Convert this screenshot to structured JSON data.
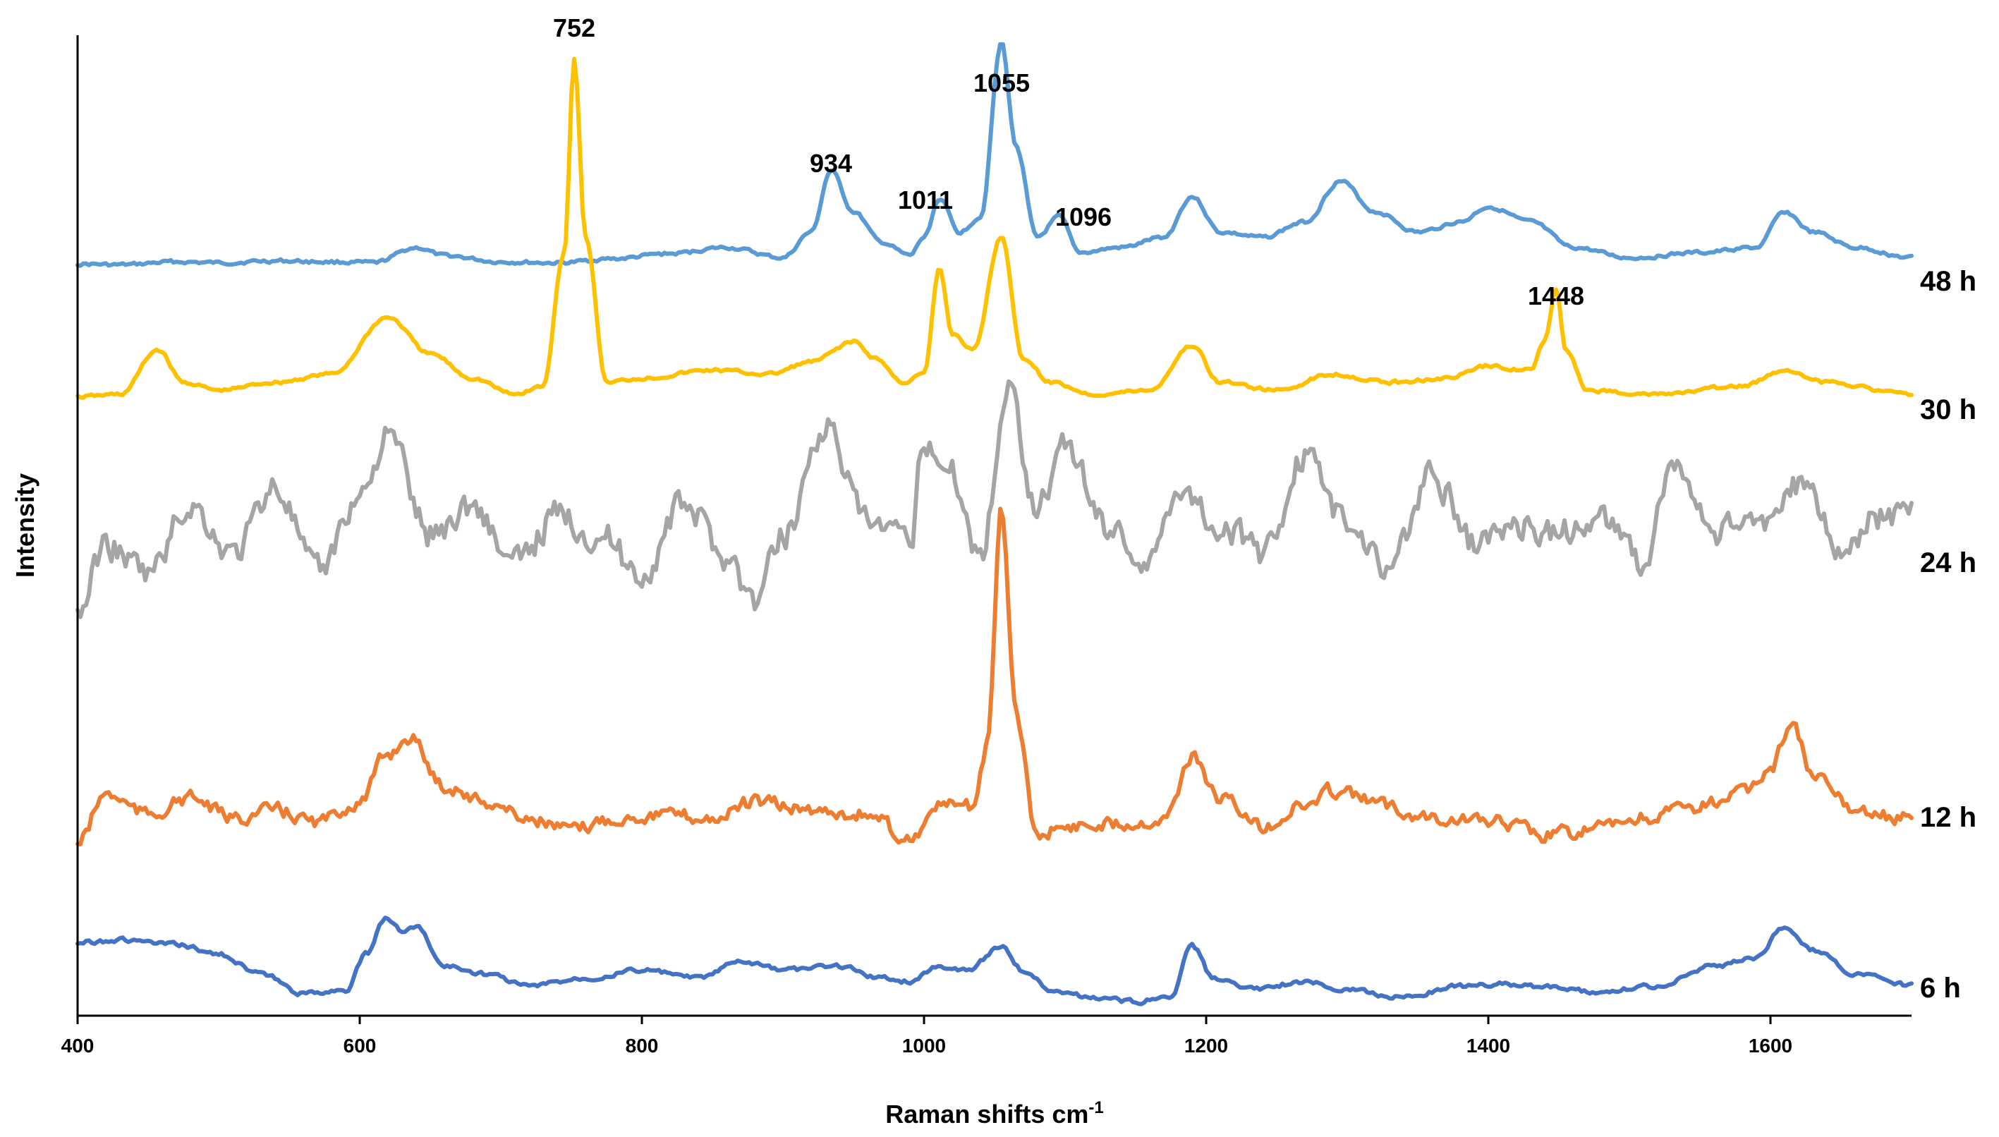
{
  "chart_data": {
    "type": "line",
    "title": "",
    "xlabel": "Raman shifts cm",
    "xlabel_superscript": "-1",
    "ylabel": "Intensity",
    "xlim": [
      400,
      1700
    ],
    "xticks": [
      400,
      600,
      800,
      1000,
      1200,
      1400,
      1600
    ],
    "xtick_labels": [
      "400",
      "600",
      "800",
      "1000",
      "1200",
      "1400",
      "1600"
    ],
    "grid": false,
    "legend": "none",
    "series": [
      {
        "name": "48 h",
        "color": "#5B9BD5",
        "points": [
          [
            400,
            0.04
          ],
          [
            430,
            0.03
          ],
          [
            470,
            0.06
          ],
          [
            500,
            0.05
          ],
          [
            540,
            0.07
          ],
          [
            580,
            0.06
          ],
          [
            610,
            0.05
          ],
          [
            640,
            0.2
          ],
          [
            660,
            0.12
          ],
          [
            700,
            0.06
          ],
          [
            740,
            0.05
          ],
          [
            780,
            0.09
          ],
          [
            820,
            0.14
          ],
          [
            860,
            0.2
          ],
          [
            900,
            0.1
          ],
          [
            920,
            0.35
          ],
          [
            934,
            0.95
          ],
          [
            950,
            0.55
          ],
          [
            970,
            0.25
          ],
          [
            990,
            0.12
          ],
          [
            1000,
            0.3
          ],
          [
            1011,
            0.68
          ],
          [
            1025,
            0.35
          ],
          [
            1040,
            0.5
          ],
          [
            1055,
            2.2
          ],
          [
            1065,
            1.2
          ],
          [
            1080,
            0.3
          ],
          [
            1096,
            0.5
          ],
          [
            1110,
            0.15
          ],
          [
            1140,
            0.2
          ],
          [
            1170,
            0.3
          ],
          [
            1190,
            0.7
          ],
          [
            1210,
            0.35
          ],
          [
            1240,
            0.3
          ],
          [
            1270,
            0.45
          ],
          [
            1295,
            0.85
          ],
          [
            1320,
            0.55
          ],
          [
            1350,
            0.35
          ],
          [
            1380,
            0.45
          ],
          [
            1400,
            0.6
          ],
          [
            1430,
            0.45
          ],
          [
            1460,
            0.2
          ],
          [
            1500,
            0.1
          ],
          [
            1550,
            0.15
          ],
          [
            1590,
            0.2
          ],
          [
            1610,
            0.55
          ],
          [
            1630,
            0.35
          ],
          [
            1660,
            0.2
          ],
          [
            1700,
            0.1
          ]
        ]
      },
      {
        "name": "30 h",
        "color": "#FFC000",
        "points": [
          [
            400,
            0.02
          ],
          [
            430,
            0.05
          ],
          [
            457,
            0.6
          ],
          [
            475,
            0.2
          ],
          [
            500,
            0.1
          ],
          [
            540,
            0.2
          ],
          [
            580,
            0.3
          ],
          [
            620,
            1.0
          ],
          [
            650,
            0.55
          ],
          [
            680,
            0.25
          ],
          [
            710,
            0.05
          ],
          [
            730,
            0.15
          ],
          [
            745,
            1.8
          ],
          [
            752,
            4.2
          ],
          [
            760,
            2.0
          ],
          [
            775,
            0.2
          ],
          [
            800,
            0.25
          ],
          [
            850,
            0.35
          ],
          [
            890,
            0.3
          ],
          [
            920,
            0.45
          ],
          [
            950,
            0.7
          ],
          [
            965,
            0.5
          ],
          [
            985,
            0.2
          ],
          [
            1000,
            0.3
          ],
          [
            1011,
            1.6
          ],
          [
            1020,
            0.8
          ],
          [
            1035,
            0.6
          ],
          [
            1055,
            2.0
          ],
          [
            1070,
            0.5
          ],
          [
            1090,
            0.2
          ],
          [
            1120,
            0.05
          ],
          [
            1160,
            0.1
          ],
          [
            1190,
            0.65
          ],
          [
            1210,
            0.2
          ],
          [
            1250,
            0.1
          ],
          [
            1290,
            0.3
          ],
          [
            1330,
            0.2
          ],
          [
            1370,
            0.25
          ],
          [
            1400,
            0.4
          ],
          [
            1430,
            0.35
          ],
          [
            1440,
            0.7
          ],
          [
            1448,
            1.35
          ],
          [
            1455,
            0.6
          ],
          [
            1470,
            0.1
          ],
          [
            1520,
            0.05
          ],
          [
            1580,
            0.15
          ],
          [
            1610,
            0.35
          ],
          [
            1640,
            0.2
          ],
          [
            1700,
            0.05
          ]
        ]
      },
      {
        "name": "24 h",
        "color": "#A5A5A5",
        "points": [
          [
            400,
            0.0
          ],
          [
            420,
            0.7
          ],
          [
            450,
            0.4
          ],
          [
            480,
            1.1
          ],
          [
            510,
            0.6
          ],
          [
            540,
            1.3
          ],
          [
            570,
            0.4
          ],
          [
            600,
            1.2
          ],
          [
            620,
            1.8
          ],
          [
            650,
            0.8
          ],
          [
            680,
            1.1
          ],
          [
            710,
            0.5
          ],
          [
            740,
            1.0
          ],
          [
            770,
            0.8
          ],
          [
            800,
            0.4
          ],
          [
            830,
            1.1
          ],
          [
            860,
            0.6
          ],
          [
            880,
            0.1
          ],
          [
            900,
            0.8
          ],
          [
            930,
            1.9
          ],
          [
            960,
            0.9
          ],
          [
            990,
            0.7
          ],
          [
            1000,
            1.8
          ],
          [
            1020,
            1.4
          ],
          [
            1040,
            0.6
          ],
          [
            1060,
            2.3
          ],
          [
            1080,
            1.1
          ],
          [
            1100,
            1.7
          ],
          [
            1130,
            0.9
          ],
          [
            1160,
            0.5
          ],
          [
            1180,
            1.3
          ],
          [
            1210,
            0.9
          ],
          [
            1240,
            0.6
          ],
          [
            1270,
            1.6
          ],
          [
            1300,
            0.9
          ],
          [
            1330,
            0.5
          ],
          [
            1360,
            1.4
          ],
          [
            1390,
            0.7
          ],
          [
            1420,
            0.9
          ],
          [
            1450,
            0.8
          ],
          [
            1480,
            1.0
          ],
          [
            1510,
            0.5
          ],
          [
            1530,
            1.5
          ],
          [
            1560,
            0.8
          ],
          [
            1590,
            0.9
          ],
          [
            1620,
            1.3
          ],
          [
            1650,
            0.7
          ],
          [
            1680,
            1.0
          ],
          [
            1700,
            1.0
          ]
        ]
      },
      {
        "name": "12 h",
        "color": "#ED7D31",
        "points": [
          [
            400,
            0.0
          ],
          [
            420,
            0.6
          ],
          [
            450,
            0.35
          ],
          [
            480,
            0.55
          ],
          [
            510,
            0.3
          ],
          [
            540,
            0.4
          ],
          [
            570,
            0.25
          ],
          [
            600,
            0.5
          ],
          [
            620,
            1.1
          ],
          [
            635,
            1.3
          ],
          [
            660,
            0.7
          ],
          [
            690,
            0.5
          ],
          [
            720,
            0.3
          ],
          [
            750,
            0.15
          ],
          [
            780,
            0.3
          ],
          [
            810,
            0.35
          ],
          [
            850,
            0.3
          ],
          [
            880,
            0.5
          ],
          [
            920,
            0.4
          ],
          [
            960,
            0.35
          ],
          [
            990,
            0.05
          ],
          [
            1010,
            0.45
          ],
          [
            1035,
            0.45
          ],
          [
            1045,
            1.2
          ],
          [
            1055,
            4.1
          ],
          [
            1065,
            1.6
          ],
          [
            1080,
            0.1
          ],
          [
            1100,
            0.2
          ],
          [
            1140,
            0.25
          ],
          [
            1170,
            0.3
          ],
          [
            1190,
            1.05
          ],
          [
            1210,
            0.55
          ],
          [
            1240,
            0.2
          ],
          [
            1270,
            0.45
          ],
          [
            1290,
            0.65
          ],
          [
            1320,
            0.5
          ],
          [
            1350,
            0.35
          ],
          [
            1380,
            0.3
          ],
          [
            1410,
            0.25
          ],
          [
            1440,
            0.1
          ],
          [
            1470,
            0.15
          ],
          [
            1510,
            0.3
          ],
          [
            1550,
            0.45
          ],
          [
            1580,
            0.6
          ],
          [
            1600,
            0.9
          ],
          [
            1615,
            1.5
          ],
          [
            1630,
            0.8
          ],
          [
            1660,
            0.4
          ],
          [
            1700,
            0.3
          ]
        ]
      },
      {
        "name": "6 h",
        "color": "#4472C4",
        "points": [
          [
            400,
            0.75
          ],
          [
            430,
            0.78
          ],
          [
            470,
            0.72
          ],
          [
            500,
            0.6
          ],
          [
            530,
            0.35
          ],
          [
            560,
            0.1
          ],
          [
            590,
            0.15
          ],
          [
            605,
            0.6
          ],
          [
            618,
            1.05
          ],
          [
            630,
            0.9
          ],
          [
            640,
            0.95
          ],
          [
            660,
            0.45
          ],
          [
            690,
            0.35
          ],
          [
            720,
            0.2
          ],
          [
            760,
            0.3
          ],
          [
            800,
            0.4
          ],
          [
            840,
            0.3
          ],
          [
            870,
            0.5
          ],
          [
            900,
            0.4
          ],
          [
            940,
            0.45
          ],
          [
            970,
            0.3
          ],
          [
            990,
            0.25
          ],
          [
            1010,
            0.45
          ],
          [
            1030,
            0.4
          ],
          [
            1055,
            0.7
          ],
          [
            1070,
            0.4
          ],
          [
            1090,
            0.15
          ],
          [
            1120,
            0.05
          ],
          [
            1150,
            0.0
          ],
          [
            1175,
            0.05
          ],
          [
            1190,
            0.7
          ],
          [
            1205,
            0.3
          ],
          [
            1230,
            0.15
          ],
          [
            1270,
            0.25
          ],
          [
            1300,
            0.15
          ],
          [
            1340,
            0.05
          ],
          [
            1380,
            0.2
          ],
          [
            1410,
            0.22
          ],
          [
            1440,
            0.18
          ],
          [
            1480,
            0.12
          ],
          [
            1520,
            0.2
          ],
          [
            1560,
            0.45
          ],
          [
            1590,
            0.55
          ],
          [
            1610,
            0.95
          ],
          [
            1630,
            0.65
          ],
          [
            1660,
            0.35
          ],
          [
            1700,
            0.2
          ]
        ]
      }
    ],
    "peak_labels": [
      {
        "text": "752",
        "x": 752
      },
      {
        "text": "934",
        "x": 934
      },
      {
        "text": "1011",
        "x": 1011
      },
      {
        "text": "1055",
        "x": 1055
      },
      {
        "text": "1096",
        "x": 1096
      },
      {
        "text": "1448",
        "x": 1448
      }
    ]
  }
}
